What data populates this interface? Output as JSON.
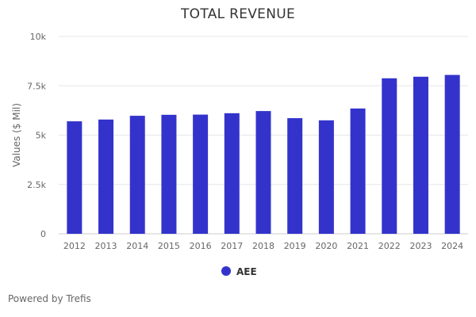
{
  "chart_data": {
    "type": "bar",
    "title": "TOTAL REVENUE",
    "xlabel": "",
    "ylabel": "Values ($ Mil)",
    "categories": [
      "2012",
      "2013",
      "2014",
      "2015",
      "2016",
      "2017",
      "2018",
      "2019",
      "2020",
      "2021",
      "2022",
      "2023",
      "2024"
    ],
    "series": [
      {
        "name": "AEE",
        "values": [
          5700,
          5790,
          5980,
          6030,
          6040,
          6110,
          6220,
          5860,
          5750,
          6350,
          7880,
          7960,
          8050
        ]
      }
    ],
    "ylim": [
      0,
      10000
    ],
    "yticks": [
      0,
      2500,
      5000,
      7500,
      10000
    ],
    "ytick_labels": [
      "0",
      "2.5k",
      "5k",
      "7.5k",
      "10k"
    ],
    "grid": true,
    "legend_position": "bottom-center"
  },
  "colors": {
    "bar": "#3333cc",
    "grid": "#e6e6e6",
    "axis_text": "#666666"
  },
  "footer": {
    "credit": "Powered by Trefis"
  }
}
